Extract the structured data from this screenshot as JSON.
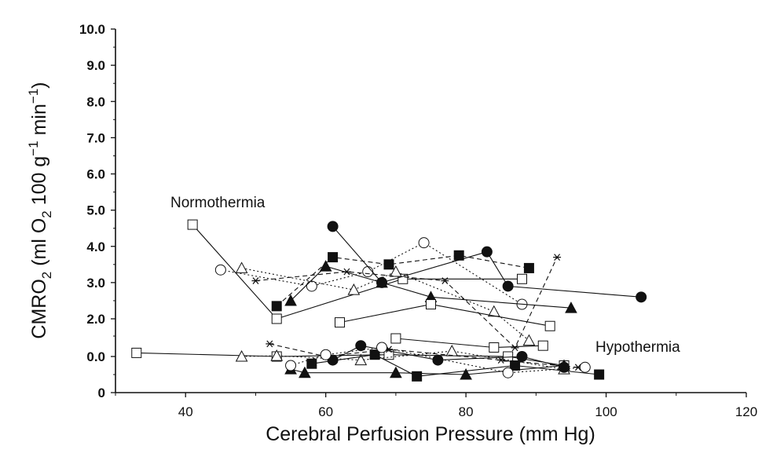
{
  "chart_data": {
    "type": "line",
    "title": "",
    "xlabel": "Cerebral Perfusion Pressure (mm Hg)",
    "ylabel_parts": {
      "a": "CMRO",
      "a_sub": "2",
      "b": " (ml O",
      "b_sub": "2",
      "c": " 100 g",
      "c_sup": "−1",
      "d": " min",
      "d_sup": "−1",
      "e": ")"
    },
    "xlim": [
      30,
      120
    ],
    "ylim_top": 10.0,
    "x_ticks": [
      "40",
      "60",
      "80",
      "100",
      "120"
    ],
    "y_ticks_upper": [
      "10.0",
      "9.0",
      "8.0",
      "7.0",
      "6.0",
      "5.0",
      "4.0",
      "3.0",
      "2.0"
    ],
    "y_ticks_lower": [
      "0.0",
      "0"
    ],
    "annotations": [
      "Normothermia",
      "Hypothermia"
    ],
    "normothermia_series": [
      {
        "marker": "open-square",
        "dash": "solid",
        "points": [
          [
            41,
            4.6
          ],
          [
            53,
            2.0
          ],
          [
            71,
            3.1
          ],
          [
            88,
            3.1
          ]
        ]
      },
      {
        "marker": "open-circle",
        "dash": "dotted",
        "points": [
          [
            45,
            3.35
          ],
          [
            58,
            2.9
          ],
          [
            66,
            3.3
          ],
          [
            74,
            4.1
          ],
          [
            88,
            2.4
          ]
        ]
      },
      {
        "marker": "open-triangle",
        "dash": "dotted",
        "points": [
          [
            48,
            3.4
          ],
          [
            64,
            2.8
          ],
          [
            70,
            3.3
          ],
          [
            84,
            2.2
          ],
          [
            89,
            1.4
          ]
        ]
      },
      {
        "marker": "asterisk",
        "dash": "dashed",
        "points": [
          [
            50,
            3.05
          ],
          [
            63,
            3.3
          ],
          [
            77,
            3.05
          ],
          [
            87,
            1.2
          ],
          [
            93,
            3.7
          ]
        ]
      },
      {
        "marker": "filled-square",
        "dash": "dashed",
        "points": [
          [
            53,
            2.35
          ],
          [
            61,
            3.7
          ],
          [
            69,
            3.5
          ],
          [
            79,
            3.75
          ],
          [
            89,
            3.4
          ]
        ]
      },
      {
        "marker": "filled-triangle",
        "dash": "solid",
        "points": [
          [
            55,
            2.5
          ],
          [
            60,
            3.45
          ],
          [
            68,
            3.0
          ],
          [
            75,
            2.6
          ],
          [
            95,
            2.3
          ]
        ]
      },
      {
        "marker": "filled-circle",
        "dash": "solid",
        "points": [
          [
            61,
            4.55
          ],
          [
            68,
            3.0
          ],
          [
            83,
            3.85
          ],
          [
            86,
            2.9
          ],
          [
            105,
            2.6
          ]
        ]
      },
      {
        "marker": "open-square",
        "dash": "solid",
        "points": [
          [
            62,
            1.9
          ],
          [
            75,
            2.4
          ],
          [
            92,
            1.8
          ]
        ]
      }
    ],
    "hypothermia_series": [
      {
        "marker": "open-square",
        "dash": "solid",
        "points": [
          [
            33,
            0.1
          ],
          [
            53,
            0.0
          ],
          [
            69,
            0.05
          ],
          [
            86,
            0.0
          ],
          [
            94,
            -0.25
          ]
        ]
      },
      {
        "marker": "open-triangle",
        "dash": "dotted",
        "points": [
          [
            48,
            0.0
          ],
          [
            53,
            0.02
          ],
          [
            65,
            -0.1
          ],
          [
            78,
            0.15
          ],
          [
            94,
            -0.35
          ]
        ]
      },
      {
        "marker": "asterisk",
        "dash": "dashed",
        "points": [
          [
            52,
            0.35
          ],
          [
            60,
            0.0
          ],
          [
            69,
            0.2
          ],
          [
            85,
            -0.1
          ],
          [
            96,
            -0.3
          ]
        ]
      },
      {
        "marker": "filled-square",
        "dash": "solid",
        "points": [
          [
            58,
            -0.2
          ],
          [
            67,
            0.05
          ],
          [
            73,
            -0.55
          ],
          [
            87,
            -0.25
          ],
          [
            99,
            -0.5
          ]
        ]
      },
      {
        "marker": "filled-triangle",
        "dash": "solid",
        "points": [
          [
            55,
            -0.35
          ],
          [
            57,
            -0.45
          ],
          [
            70,
            -0.45
          ],
          [
            80,
            -0.5
          ],
          [
            94,
            -0.25
          ]
        ]
      },
      {
        "marker": "filled-circle",
        "dash": "solid",
        "points": [
          [
            61,
            -0.1
          ],
          [
            65,
            0.3
          ],
          [
            76,
            -0.1
          ],
          [
            88,
            0.0
          ],
          [
            94,
            -0.3
          ]
        ]
      },
      {
        "marker": "open-circle",
        "dash": "dotted",
        "points": [
          [
            55,
            -0.25
          ],
          [
            60,
            0.05
          ],
          [
            68,
            0.25
          ],
          [
            86,
            -0.45
          ],
          [
            97,
            -0.3
          ]
        ]
      },
      {
        "marker": "open-square",
        "dash": "solid",
        "points": [
          [
            70,
            0.5
          ],
          [
            84,
            0.25
          ],
          [
            91,
            0.3
          ]
        ]
      }
    ]
  }
}
